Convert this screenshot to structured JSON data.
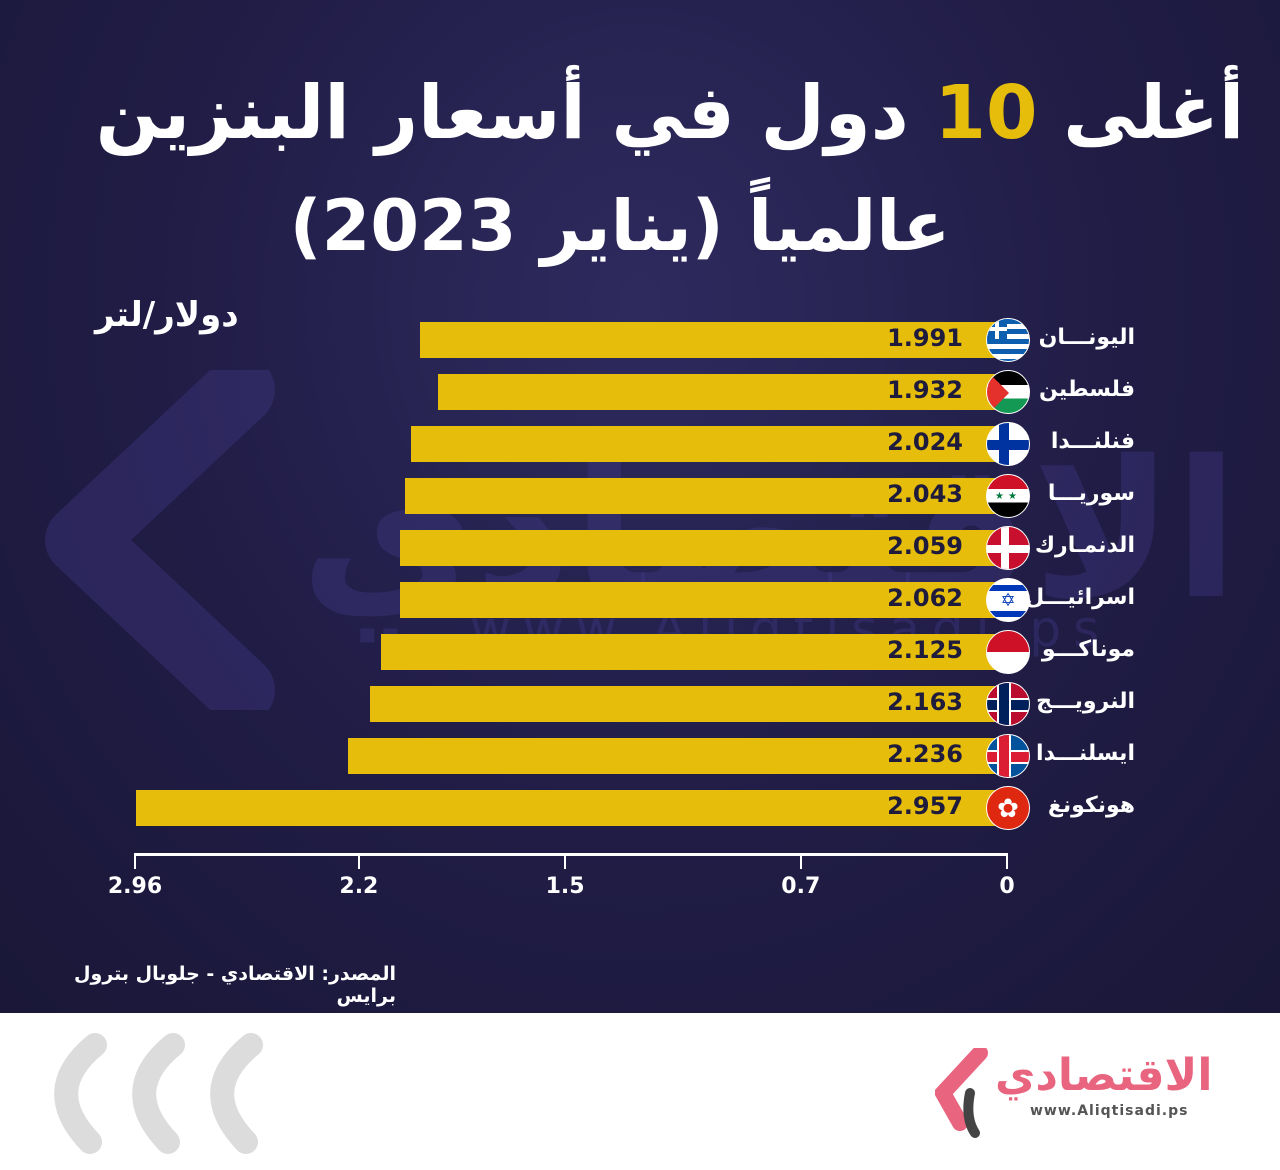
{
  "header": {
    "title_pre": "أغلى",
    "title_number": "10",
    "title_post": "دول في أسعار البنزين",
    "title_line2": "عالمياً (يناير 2023)"
  },
  "unit": "دولار/لتر",
  "watermark": {
    "text": "الاقتصادي",
    "url": "www.Aliqtisadi.ps"
  },
  "source": "المصدر: الاقتصادي - جلوبال بترول برايس",
  "logo": {
    "text": "الاقتصادي",
    "url": "www.Aliqtisadi.ps"
  },
  "colors": {
    "bar": "#e5bd0a",
    "background": "#201c45"
  },
  "chart_data": {
    "type": "bar",
    "orientation": "horizontal",
    "title": "أغلى 10 دول في أسعار البنزين عالمياً (يناير 2023)",
    "xlabel": "دولار/لتر",
    "categories": [
      "اليونـــان",
      "فلسطين",
      "فنلنـــدا",
      "سوريـــا",
      "الدنمـارك",
      "اسرائيـــل",
      "موناكـــو",
      "النرويـــج",
      "ايسلنـــدا",
      "هونكونغ"
    ],
    "flags": [
      "gr",
      "ps",
      "fi",
      "sy",
      "dk",
      "il",
      "mc",
      "no",
      "is",
      "hk"
    ],
    "values": [
      1.991,
      1.932,
      2.024,
      2.043,
      2.059,
      2.062,
      2.125,
      2.163,
      2.236,
      2.957
    ],
    "value_labels": [
      "1.991",
      "1.932",
      "2.024",
      "2.043",
      "2.059",
      "2.062",
      "2.125",
      "2.163",
      "2.236",
      "2.957"
    ],
    "xticks": [
      0,
      0.7,
      1.5,
      2.2,
      2.96
    ],
    "xtick_labels": [
      "0",
      "0.7",
      "1.5",
      "2.2",
      "2.96"
    ],
    "xlim": [
      0,
      2.96
    ],
    "axis_direction": "right-to-left"
  }
}
